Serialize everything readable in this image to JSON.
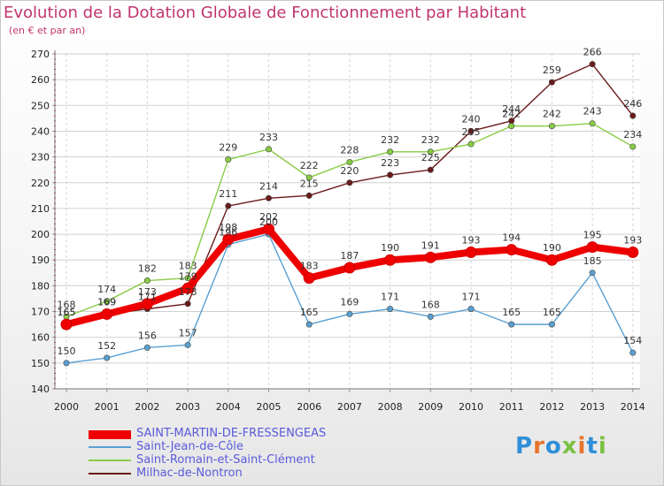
{
  "page": {
    "title": "Evolution de la Dotation Globale de Fonctionnement par Habitant",
    "subtitle": "(en € et par an)",
    "logo": "Proxiti"
  },
  "chart_data": {
    "type": "line",
    "title": "Evolution de la Dotation Globale de Fonctionnement par Habitant",
    "subtitle": "(en € et par an)",
    "xlabel": "",
    "ylabel": "",
    "ylim": [
      140,
      270
    ],
    "yticks": [
      140,
      150,
      160,
      170,
      180,
      190,
      200,
      210,
      220,
      230,
      240,
      250,
      260,
      270
    ],
    "grid": true,
    "categories": [
      "2000",
      "2001",
      "2002",
      "2003",
      "2004",
      "2005",
      "2006",
      "2007",
      "2008",
      "2009",
      "2010",
      "2011",
      "2012",
      "2013",
      "2014"
    ],
    "series": [
      {
        "name": "Milhac-de-Nontron",
        "color": "#6b1a1a",
        "values": [
          165,
          169,
          171,
          173,
          211,
          214,
          215,
          220,
          223,
          225,
          240,
          244,
          259,
          266,
          246
        ]
      },
      {
        "name": "Saint-Romain-et-Saint-Clément",
        "color": "#88cc44",
        "values": [
          168,
          174,
          182,
          183,
          229,
          233,
          222,
          228,
          232,
          232,
          235,
          242,
          242,
          243,
          234
        ]
      },
      {
        "name": "Saint-Jean-de-Côle",
        "color": "#5aa0d2",
        "values": [
          150,
          152,
          156,
          157,
          196,
          200,
          165,
          169,
          171,
          168,
          171,
          165,
          165,
          185,
          154
        ]
      },
      {
        "name": "SAINT-MARTIN-DE-FRESSENGEAS",
        "color": "#ee0000",
        "values": [
          165,
          169,
          173,
          179,
          198,
          202,
          183,
          187,
          190,
          191,
          193,
          194,
          190,
          195,
          193
        ]
      }
    ],
    "legend": [
      "SAINT-MARTIN-DE-FRESSENGEAS",
      "Saint-Jean-de-Côle",
      "Saint-Romain-et-Saint-Clément",
      "Milhac-de-Nontron"
    ],
    "legend_position": "bottom-left"
  }
}
